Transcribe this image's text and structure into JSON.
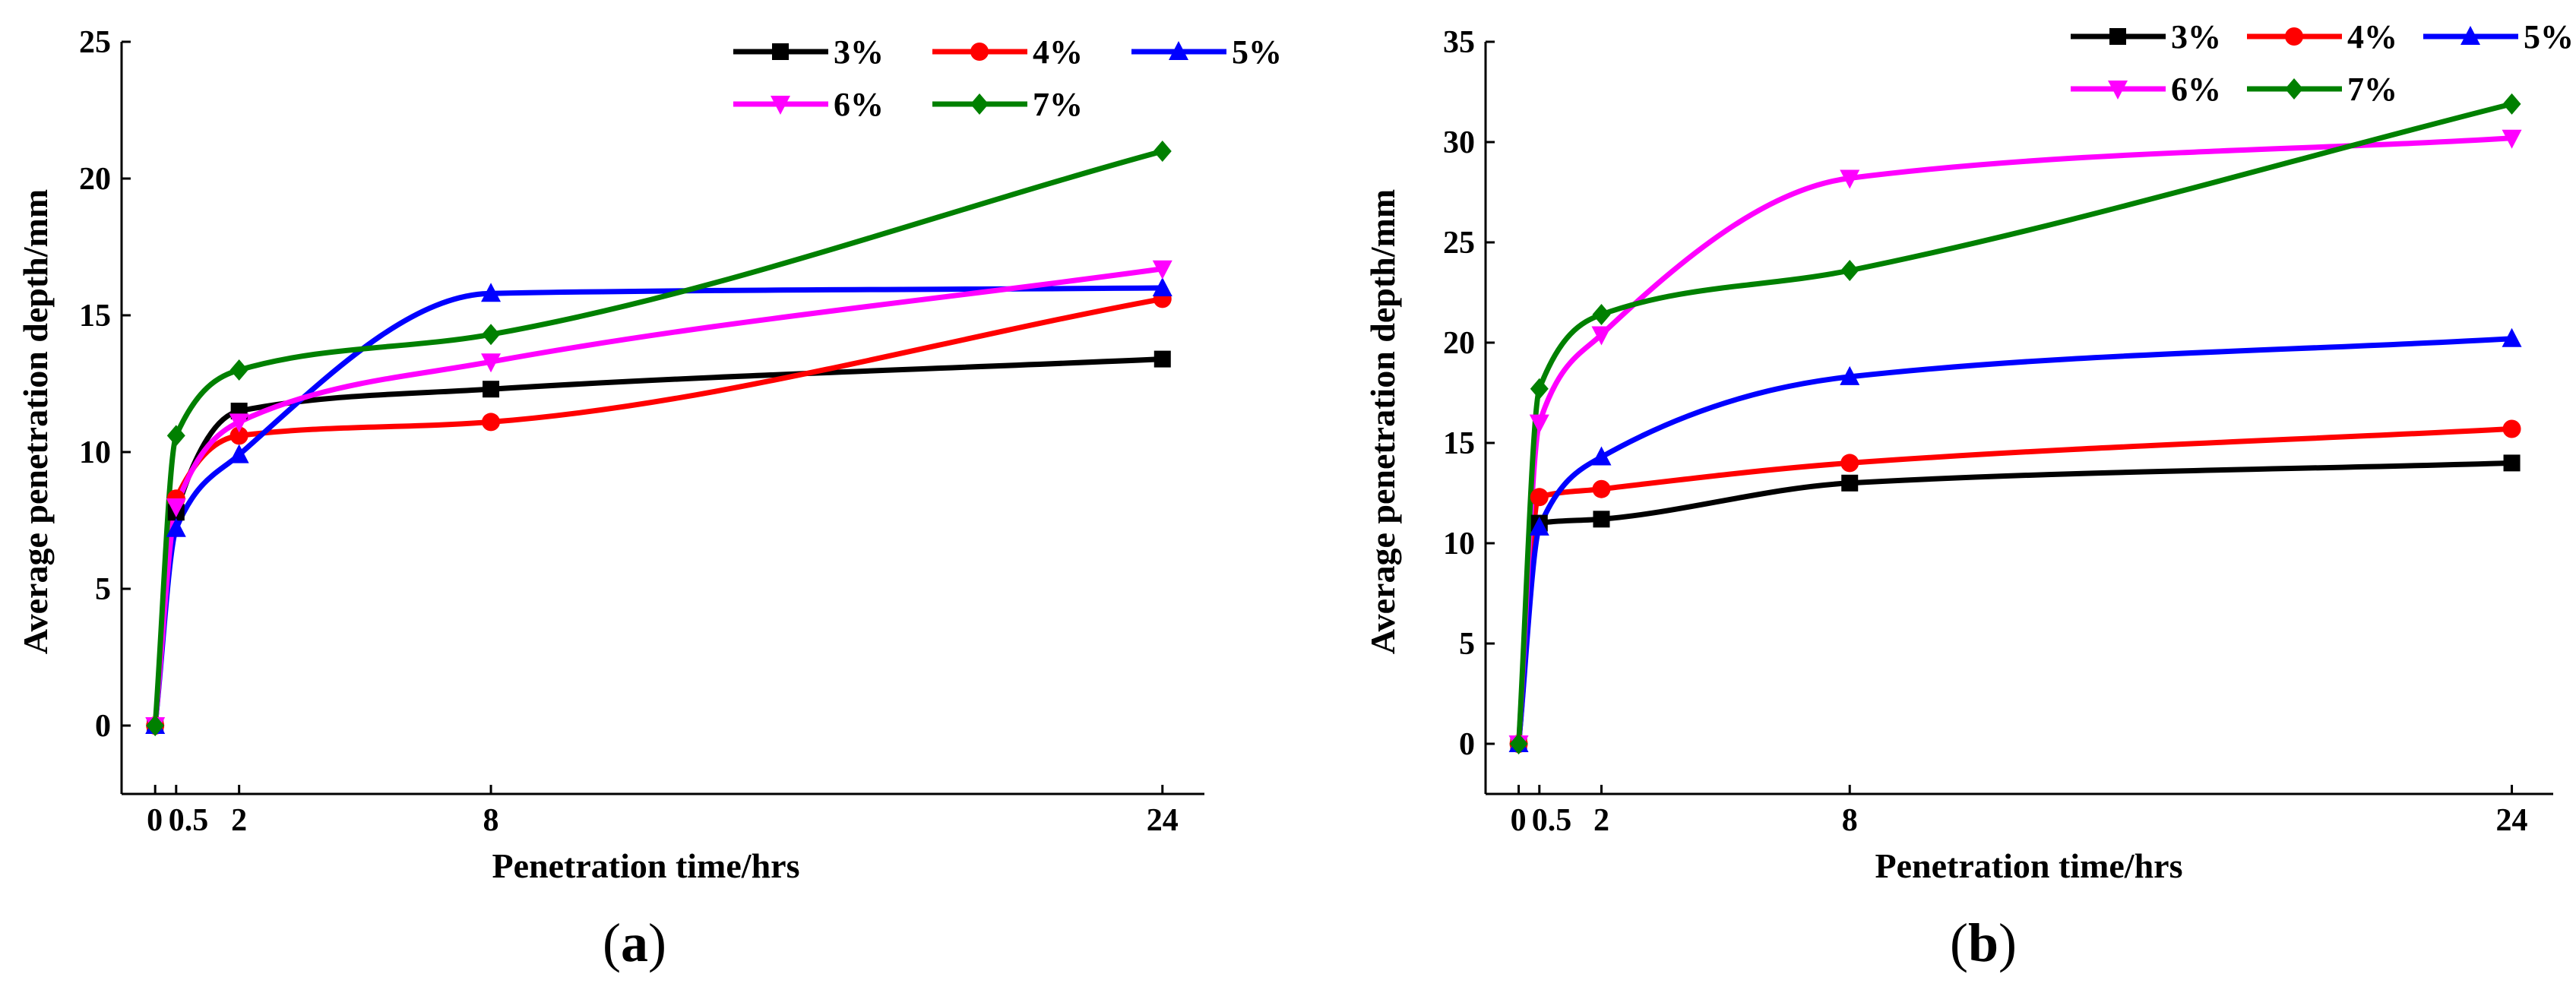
{
  "chart_data": [
    {
      "type": "line",
      "panel_label": "(a)",
      "panel_letter": "a",
      "xlabel": "Penetration time/hrs",
      "ylabel": "Average penetration depth/mm",
      "xlim": [
        -0.8,
        25
      ],
      "ylim": [
        -2.5,
        25
      ],
      "x_ticks": [
        0,
        0.5,
        2,
        8,
        24
      ],
      "x_tick_labels": [
        "0",
        "0.5",
        "2",
        "8",
        "24"
      ],
      "y_ticks": [
        0,
        5,
        10,
        15,
        20,
        25
      ],
      "y_tick_labels": [
        "0",
        "5",
        "10",
        "15",
        "20",
        "25"
      ],
      "x": [
        0,
        0.5,
        2,
        8,
        24
      ],
      "series": [
        {
          "name": "3%",
          "color": "#000000",
          "marker": "square",
          "values": [
            0,
            7.8,
            11.5,
            12.3,
            13.4
          ]
        },
        {
          "name": "4%",
          "color": "#ff0000",
          "marker": "circle",
          "values": [
            0,
            8.3,
            10.6,
            11.1,
            15.6
          ]
        },
        {
          "name": "5%",
          "color": "#0000ff",
          "marker": "triangle-up",
          "values": [
            0,
            7.2,
            9.9,
            15.8,
            16.0
          ]
        },
        {
          "name": "6%",
          "color": "#ff00ff",
          "marker": "triangle-down",
          "values": [
            0,
            8.0,
            11.1,
            13.3,
            16.7
          ]
        },
        {
          "name": "7%",
          "color": "#008000",
          "marker": "diamond",
          "values": [
            0,
            10.6,
            13.0,
            14.3,
            21.0
          ]
        }
      ]
    },
    {
      "type": "line",
      "panel_label": "(b)",
      "panel_letter": "b",
      "xlabel": "Penetration time/hrs",
      "ylabel": "Average penetration depth/mm",
      "xlim": [
        -0.8,
        25
      ],
      "ylim": [
        -2.5,
        35
      ],
      "x_ticks": [
        0,
        0.5,
        2,
        8,
        24
      ],
      "x_tick_labels": [
        "0",
        "0.5",
        "2",
        "8",
        "24"
      ],
      "y_ticks": [
        0,
        5,
        10,
        15,
        20,
        25,
        30,
        35
      ],
      "y_tick_labels": [
        "0",
        "5",
        "10",
        "15",
        "20",
        "25",
        "30",
        "35"
      ],
      "x": [
        0,
        0.5,
        2,
        8,
        24
      ],
      "series": [
        {
          "name": "3%",
          "color": "#000000",
          "marker": "square",
          "values": [
            0,
            11.0,
            11.2,
            13.0,
            14.0
          ]
        },
        {
          "name": "4%",
          "color": "#ff0000",
          "marker": "circle",
          "values": [
            0,
            12.3,
            12.7,
            14.0,
            15.7
          ]
        },
        {
          "name": "5%",
          "color": "#0000ff",
          "marker": "triangle-up",
          "values": [
            0,
            10.8,
            14.3,
            18.3,
            20.2
          ]
        },
        {
          "name": "6%",
          "color": "#ff00ff",
          "marker": "triangle-down",
          "values": [
            0,
            16.0,
            20.4,
            28.2,
            30.2
          ]
        },
        {
          "name": "7%",
          "color": "#008000",
          "marker": "diamond",
          "values": [
            0,
            17.7,
            21.4,
            23.6,
            31.9
          ]
        }
      ]
    }
  ]
}
